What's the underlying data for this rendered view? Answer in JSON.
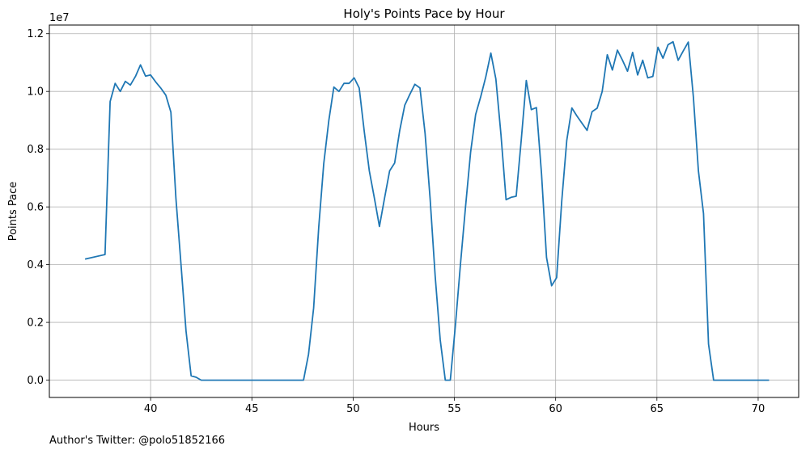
{
  "chart_data": {
    "type": "line",
    "title": "Holy's Points Pace by Hour",
    "xlabel": "Hours",
    "ylabel": "Points Pace",
    "y_offset_label": "1e7",
    "xlim": [
      35.0,
      72.0
    ],
    "ylim": [
      -600000,
      12300000
    ],
    "grid": true,
    "x_ticks": [
      40,
      45,
      50,
      55,
      60,
      65,
      70
    ],
    "y_ticks": [
      0,
      2000000,
      4000000,
      6000000,
      8000000,
      10000000,
      12000000
    ],
    "y_tick_labels": [
      "0.0",
      "0.2",
      "0.4",
      "0.6",
      "0.8",
      "1.0",
      "1.2"
    ],
    "series": [
      {
        "color": "#1f77b4",
        "x": [
          36.8,
          37.75,
          38.0,
          38.25,
          38.5,
          38.75,
          39.0,
          39.25,
          39.5,
          39.75,
          40.0,
          40.25,
          40.5,
          40.75,
          41.0,
          41.25,
          41.5,
          41.75,
          42.0,
          42.25,
          42.5,
          43.0,
          44.0,
          45.0,
          46.0,
          47.0,
          47.55,
          47.8,
          48.05,
          48.3,
          48.55,
          48.8,
          49.05,
          49.3,
          49.55,
          49.8,
          50.05,
          50.3,
          50.55,
          50.8,
          51.05,
          51.3,
          51.55,
          51.8,
          52.05,
          52.3,
          52.55,
          52.8,
          53.05,
          53.3,
          53.55,
          53.8,
          54.05,
          54.3,
          54.55,
          54.8,
          55.05,
          55.3,
          55.55,
          55.8,
          56.05,
          56.3,
          56.55,
          56.8,
          57.05,
          57.3,
          57.55,
          57.8,
          58.05,
          58.3,
          58.55,
          58.8,
          59.05,
          59.3,
          59.55,
          59.8,
          60.05,
          60.3,
          60.55,
          60.8,
          61.05,
          61.3,
          61.55,
          61.8,
          62.05,
          62.3,
          62.55,
          62.8,
          63.05,
          63.3,
          63.55,
          63.8,
          64.05,
          64.3,
          64.55,
          64.8,
          65.05,
          65.3,
          65.55,
          65.8,
          66.05,
          66.3,
          66.55,
          66.8,
          67.05,
          67.3,
          67.55,
          67.8,
          68.05,
          69.0,
          70.0,
          70.5
        ],
        "y": [
          4200000,
          4350000,
          9650000,
          10280000,
          10000000,
          10350000,
          10220000,
          10520000,
          10920000,
          10530000,
          10570000,
          10330000,
          10120000,
          9870000,
          9280000,
          6300000,
          4000000,
          1700000,
          150000,
          100000,
          0,
          0,
          0,
          0,
          0,
          0,
          0,
          900000,
          2500000,
          5300000,
          7500000,
          9000000,
          10150000,
          10000000,
          10280000,
          10280000,
          10470000,
          10120000,
          8600000,
          7250000,
          6300000,
          5320000,
          6300000,
          7250000,
          7520000,
          8650000,
          9520000,
          9900000,
          10250000,
          10120000,
          8550000,
          6300000,
          3600000,
          1400000,
          0,
          0,
          1900000,
          4000000,
          6000000,
          7900000,
          9200000,
          9820000,
          10500000,
          11330000,
          10430000,
          8500000,
          6250000,
          6330000,
          6370000,
          8300000,
          10380000,
          9370000,
          9440000,
          7150000,
          4250000,
          3270000,
          3550000,
          6200000,
          8300000,
          9430000,
          9150000,
          8900000,
          8650000,
          9300000,
          9420000,
          10000000,
          11270000,
          10740000,
          11430000,
          11080000,
          10700000,
          11350000,
          10570000,
          11080000,
          10470000,
          10520000,
          11530000,
          11150000,
          11620000,
          11720000,
          11080000,
          11400000,
          11710000,
          9800000,
          7250000,
          5770000,
          1250000,
          0,
          0,
          0,
          0,
          0
        ]
      }
    ]
  },
  "footer_text": "Author's Twitter: @polo51852166"
}
